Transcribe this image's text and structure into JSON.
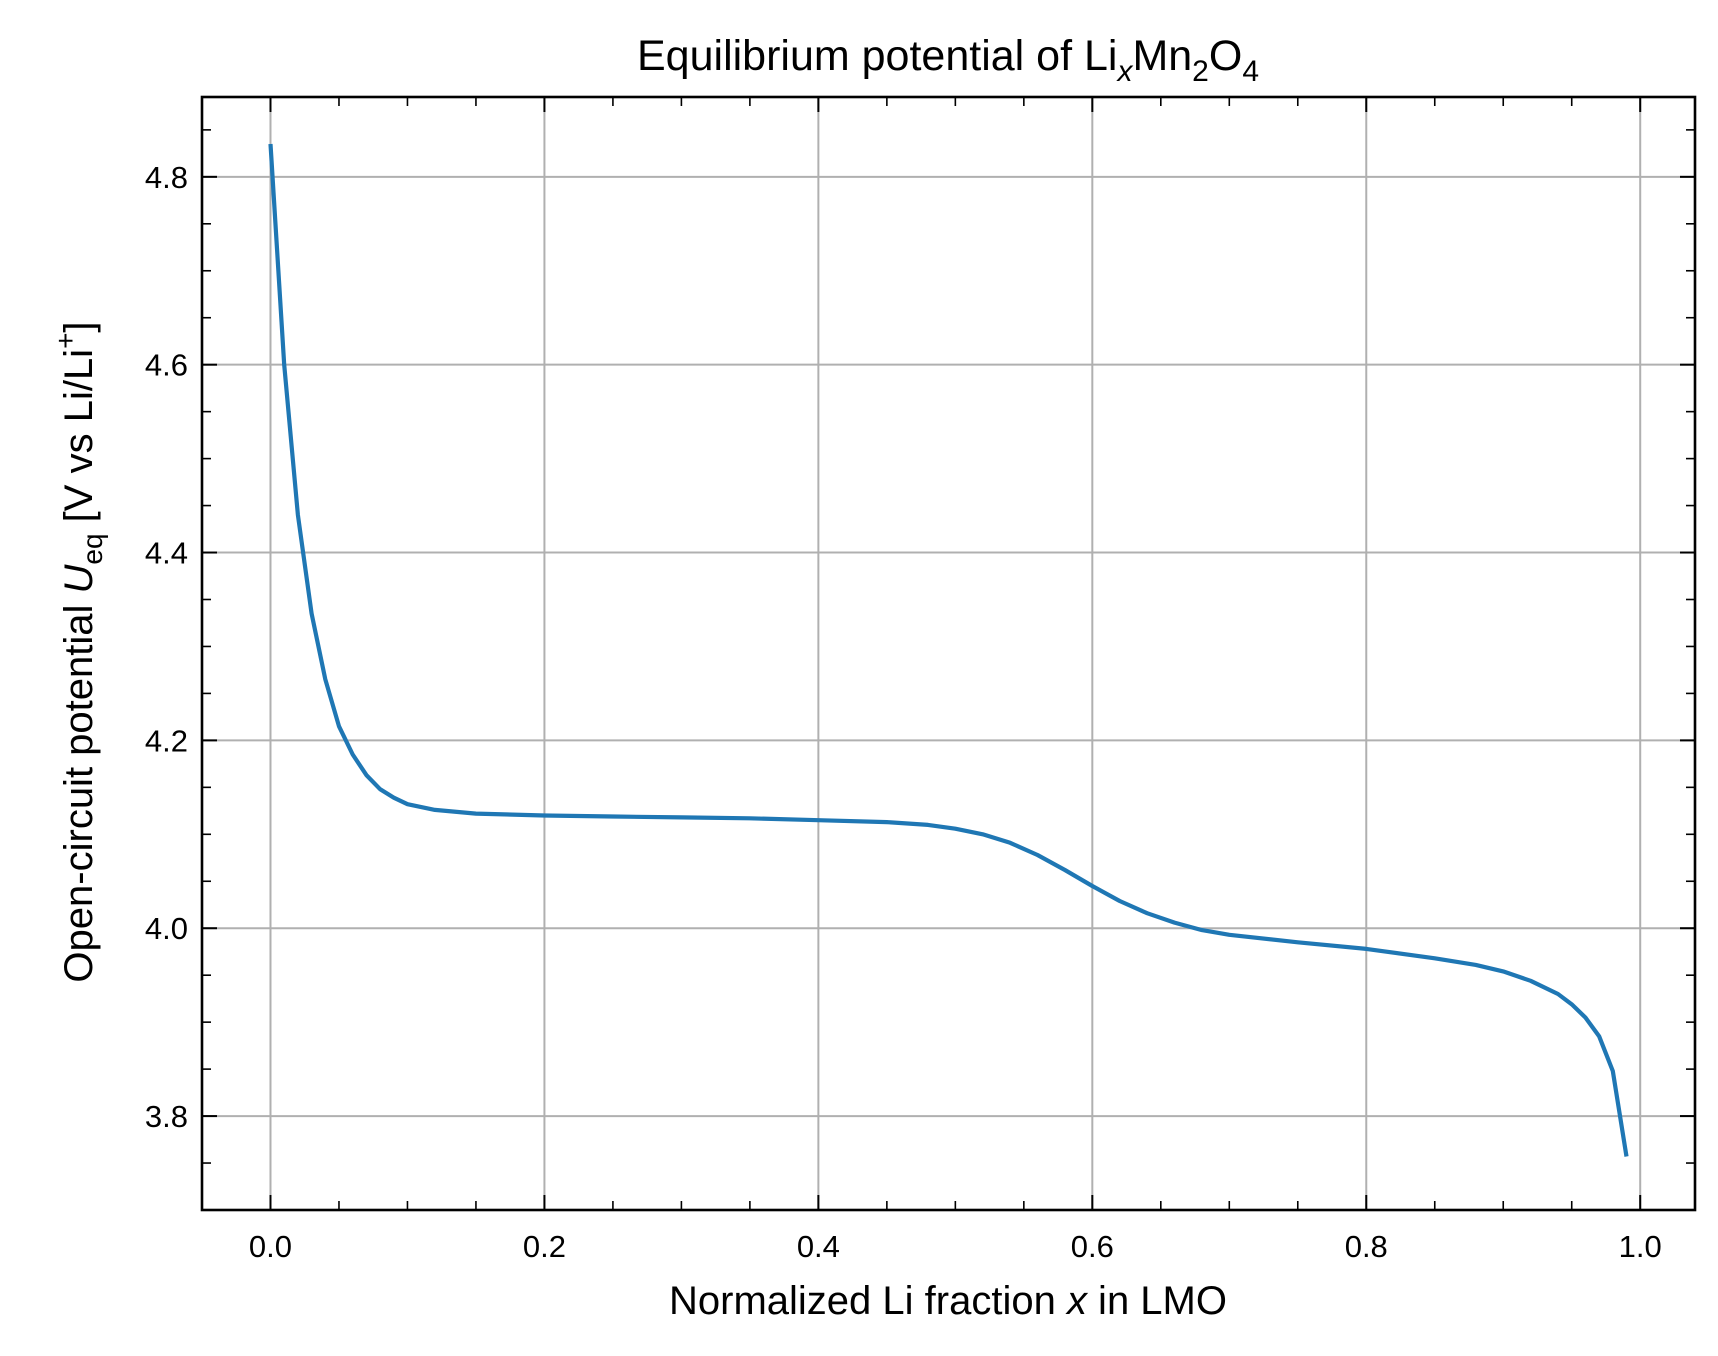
{
  "chart_data": {
    "type": "line",
    "title": {
      "prefix": "Equilibrium potential of Li",
      "sub1": "x",
      "mid1": "Mn",
      "sub2": "2",
      "mid2": "O",
      "sub3": "4"
    },
    "xlabel": {
      "prefix": "Normalized Li fraction ",
      "var": "x",
      "suffix": " in LMO"
    },
    "ylabel": {
      "prefix": "Open-circuit potential ",
      "var": "U",
      "sub": "eq",
      "mid": " [V vs Li/Li",
      "sup": "+",
      "suffix": "]"
    },
    "xlim": [
      -0.05,
      1.04
    ],
    "ylim": [
      3.7,
      4.885
    ],
    "xticks": [
      "0.0",
      "0.2",
      "0.4",
      "0.6",
      "0.8",
      "1.0"
    ],
    "yticks": [
      "3.8",
      "4.0",
      "4.2",
      "4.4",
      "4.6",
      "4.8"
    ],
    "grid": true,
    "colors": {
      "line": "#1f77b4",
      "grid": "#b0b0b0",
      "axes": "#000000"
    },
    "series": [
      {
        "x": [
          0.0,
          0.01,
          0.02,
          0.03,
          0.04,
          0.05,
          0.06,
          0.07,
          0.08,
          0.09,
          0.1,
          0.12,
          0.15,
          0.2,
          0.25,
          0.3,
          0.35,
          0.4,
          0.45,
          0.48,
          0.5,
          0.52,
          0.54,
          0.56,
          0.58,
          0.6,
          0.62,
          0.64,
          0.66,
          0.68,
          0.7,
          0.75,
          0.8,
          0.85,
          0.88,
          0.9,
          0.92,
          0.94,
          0.95,
          0.96,
          0.97,
          0.98,
          0.99
        ],
        "y": [
          4.835,
          4.6,
          4.44,
          4.335,
          4.265,
          4.215,
          4.185,
          4.163,
          4.148,
          4.139,
          4.132,
          4.126,
          4.122,
          4.12,
          4.119,
          4.118,
          4.117,
          4.115,
          4.113,
          4.11,
          4.106,
          4.1,
          4.091,
          4.078,
          4.062,
          4.045,
          4.029,
          4.016,
          4.006,
          3.998,
          3.993,
          3.985,
          3.978,
          3.968,
          3.961,
          3.954,
          3.944,
          3.93,
          3.919,
          3.905,
          3.885,
          3.848,
          3.757
        ]
      }
    ]
  }
}
